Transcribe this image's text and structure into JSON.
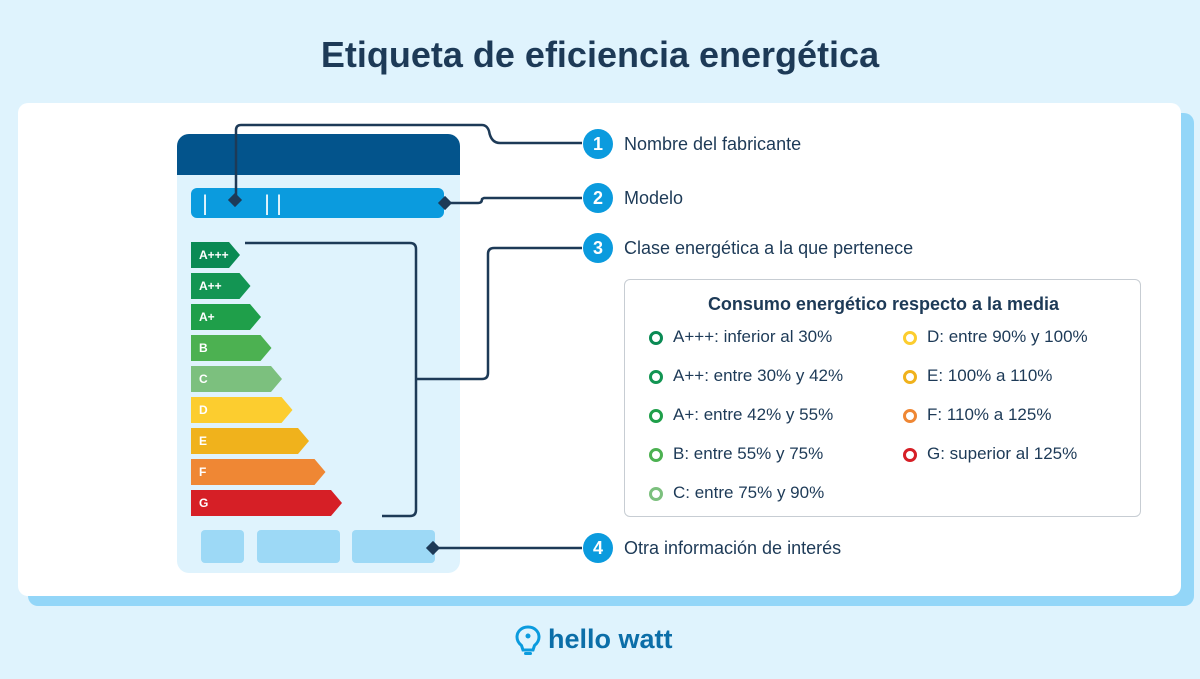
{
  "title": "Etiqueta de eficiencia energética",
  "label": {
    "model_code_left": "|",
    "model_code_right": "||",
    "classes": [
      {
        "name": "A+++",
        "color": "#0a8a54"
      },
      {
        "name": "A++",
        "color": "#139553"
      },
      {
        "name": "A+",
        "color": "#1f9f4a"
      },
      {
        "name": "B",
        "color": "#4cb151"
      },
      {
        "name": "C",
        "color": "#7cc07e"
      },
      {
        "name": "D",
        "color": "#fccd2f"
      },
      {
        "name": "E",
        "color": "#f0b21c"
      },
      {
        "name": "F",
        "color": "#ef8734"
      },
      {
        "name": "G",
        "color": "#d61f26"
      }
    ]
  },
  "callouts": [
    {
      "number": "1",
      "text": "Nombre del fabricante"
    },
    {
      "number": "2",
      "text": "Modelo"
    },
    {
      "number": "3",
      "text": "Clase energética a la que pertenece"
    },
    {
      "number": "4",
      "text": "Otra información de interés"
    }
  ],
  "legend": {
    "title": "Consumo energético respecto a la media",
    "items": [
      {
        "text": "A+++:  inferior al 30%",
        "color": "#0a8a54"
      },
      {
        "text": "A++: entre 30% y 42%",
        "color": "#139553"
      },
      {
        "text": "A+: entre 42% y 55%",
        "color": "#1f9f4a"
      },
      {
        "text": "B: entre 55% y 75%",
        "color": "#4cb151"
      },
      {
        "text": "C: entre 75% y 90%",
        "color": "#7cc07e"
      },
      {
        "text": "D: entre 90% y 100%",
        "color": "#fccd2f"
      },
      {
        "text": "E: 100% a 110%",
        "color": "#f0b21c"
      },
      {
        "text": "F: 110% a 125%",
        "color": "#ef8734"
      },
      {
        "text": "G: superior al 125%",
        "color": "#d61f26"
      }
    ]
  },
  "brand": {
    "name": "hello watt",
    "icon": "lightbulb-icon"
  }
}
